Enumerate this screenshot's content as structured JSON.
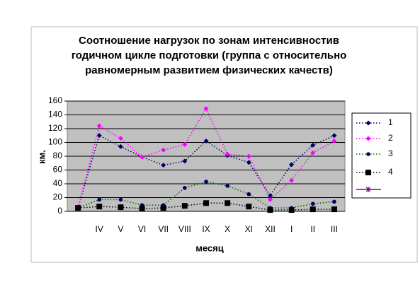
{
  "chart_data": {
    "type": "line",
    "title": [
      "Соотношение нагрузок по зонам интенсивностив",
      "годичном цикле подготовки (группа с относительно",
      "равномерным развитием физических качеств)"
    ],
    "x_label": "месяц",
    "y_label": "км.",
    "categories": [
      null,
      "IV",
      "V",
      "VI",
      "VII",
      "VIII",
      "IX",
      "X",
      "XI",
      "XII",
      "I",
      "II",
      "III"
    ],
    "series": [
      {
        "name": "1",
        "color": "#000066",
        "marker": "diamond",
        "values": [
          5,
          110,
          94,
          79,
          67,
          73,
          102,
          81,
          71,
          23,
          68,
          96,
          110
        ]
      },
      {
        "name": "2",
        "color": "#ff00ff",
        "marker": "diamond",
        "values": [
          5,
          124,
          106,
          79,
          89,
          97,
          149,
          83,
          80,
          17,
          45,
          85,
          102
        ]
      },
      {
        "name": "3",
        "color": "#006600",
        "marker_color": "#000066",
        "marker": "circle",
        "values": [
          5,
          17,
          17,
          9,
          9,
          34,
          43,
          37,
          25,
          5,
          5,
          11,
          14
        ]
      },
      {
        "name": "4",
        "color": "#000000",
        "marker": "square",
        "values": [
          5,
          7,
          6,
          4,
          5,
          8,
          12,
          12,
          7,
          2,
          2,
          3,
          3
        ]
      },
      {
        "color": "#800080",
        "marker": "star",
        "values": [
          null,
          null,
          null,
          null,
          null,
          null,
          null,
          null,
          null,
          null,
          null,
          null,
          null
        ]
      }
    ],
    "ylim": [
      0,
      160
    ],
    "yticks": [
      0,
      20,
      40,
      60,
      80,
      100,
      120,
      140,
      160
    ],
    "grid": true,
    "legend": "right"
  }
}
